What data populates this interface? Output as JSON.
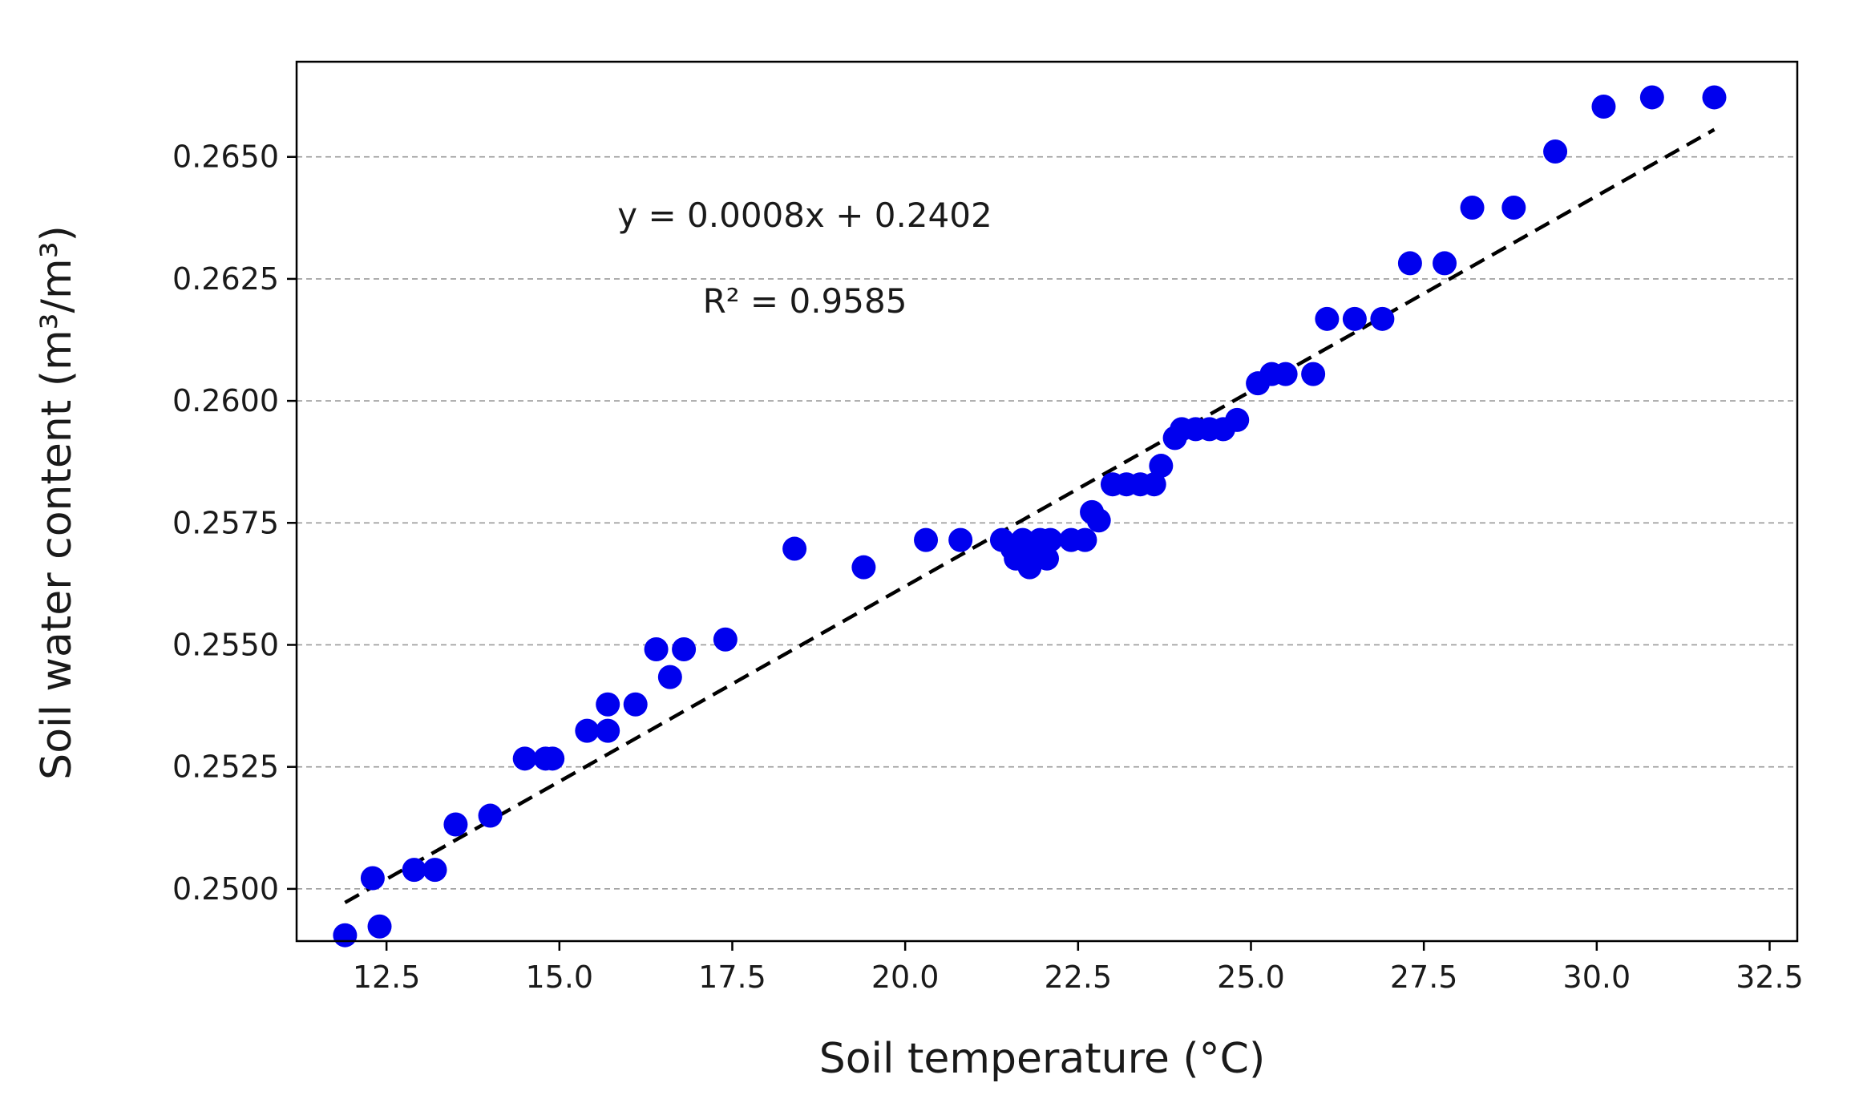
{
  "chart_data": {
    "type": "scatter",
    "title": "",
    "xlabel": "Soil temperature (°C)",
    "ylabel": "Soil water content (m³/m³)",
    "xlim": [
      11.2,
      32.9
    ],
    "ylim": [
      0.24893,
      0.26695
    ],
    "xticks": [
      12.5,
      15.0,
      17.5,
      20.0,
      22.5,
      25.0,
      27.5,
      30.0,
      32.5
    ],
    "xtick_labels": [
      "12.5",
      "15.0",
      "17.5",
      "20.0",
      "22.5",
      "25.0",
      "27.5",
      "30.0",
      "32.5"
    ],
    "yticks": [
      0.25,
      0.2525,
      0.255,
      0.2575,
      0.26,
      0.2625,
      0.265
    ],
    "ytick_labels": [
      "0.2500",
      "0.2525",
      "0.2550",
      "0.2575",
      "0.2600",
      "0.2625",
      "0.2650"
    ],
    "grid": "horizontal-dashed",
    "point_color": "#0000ee",
    "fit_color": "#000000",
    "fit_line": {
      "slope": 0.0008,
      "intercept": 0.2402,
      "x_range": [
        11.9,
        31.7
      ],
      "style": "dashed"
    },
    "annotations": [
      "y = 0.0008x + 0.2402",
      "R² = 0.9585"
    ],
    "points": [
      [
        11.9,
        0.24905
      ],
      [
        12.3,
        0.25022
      ],
      [
        12.4,
        0.24923
      ],
      [
        12.9,
        0.25039
      ],
      [
        13.2,
        0.25039
      ],
      [
        13.5,
        0.25132
      ],
      [
        14.0,
        0.2515
      ],
      [
        14.5,
        0.25267
      ],
      [
        14.8,
        0.25267
      ],
      [
        14.9,
        0.25267
      ],
      [
        15.4,
        0.25324
      ],
      [
        15.7,
        0.25324
      ],
      [
        15.7,
        0.25378
      ],
      [
        16.1,
        0.25378
      ],
      [
        16.4,
        0.25491
      ],
      [
        16.6,
        0.25434
      ],
      [
        16.8,
        0.25491
      ],
      [
        17.4,
        0.25511
      ],
      [
        18.4,
        0.25697
      ],
      [
        19.4,
        0.25659
      ],
      [
        20.3,
        0.25715
      ],
      [
        20.8,
        0.25715
      ],
      [
        21.4,
        0.25715
      ],
      [
        21.55,
        0.25697
      ],
      [
        21.6,
        0.25677
      ],
      [
        21.7,
        0.25715
      ],
      [
        21.8,
        0.25659
      ],
      [
        21.85,
        0.25697
      ],
      [
        21.95,
        0.25715
      ],
      [
        22.05,
        0.25677
      ],
      [
        22.1,
        0.25715
      ],
      [
        22.4,
        0.25715
      ],
      [
        22.6,
        0.25715
      ],
      [
        22.7,
        0.25772
      ],
      [
        22.8,
        0.25755
      ],
      [
        23.0,
        0.25829
      ],
      [
        23.2,
        0.25829
      ],
      [
        23.4,
        0.25829
      ],
      [
        23.6,
        0.25829
      ],
      [
        23.7,
        0.25867
      ],
      [
        23.9,
        0.25924
      ],
      [
        24.0,
        0.25942
      ],
      [
        24.2,
        0.25942
      ],
      [
        24.4,
        0.25942
      ],
      [
        24.6,
        0.25942
      ],
      [
        24.8,
        0.25961
      ],
      [
        25.1,
        0.26036
      ],
      [
        25.3,
        0.26055
      ],
      [
        25.5,
        0.26055
      ],
      [
        25.9,
        0.26055
      ],
      [
        26.1,
        0.26168
      ],
      [
        26.5,
        0.26168
      ],
      [
        26.9,
        0.26168
      ],
      [
        27.3,
        0.26282
      ],
      [
        27.8,
        0.26282
      ],
      [
        28.2,
        0.26396
      ],
      [
        28.8,
        0.26396
      ],
      [
        29.4,
        0.26511
      ],
      [
        30.1,
        0.26603
      ],
      [
        30.8,
        0.26622
      ],
      [
        31.7,
        0.26622
      ]
    ]
  }
}
